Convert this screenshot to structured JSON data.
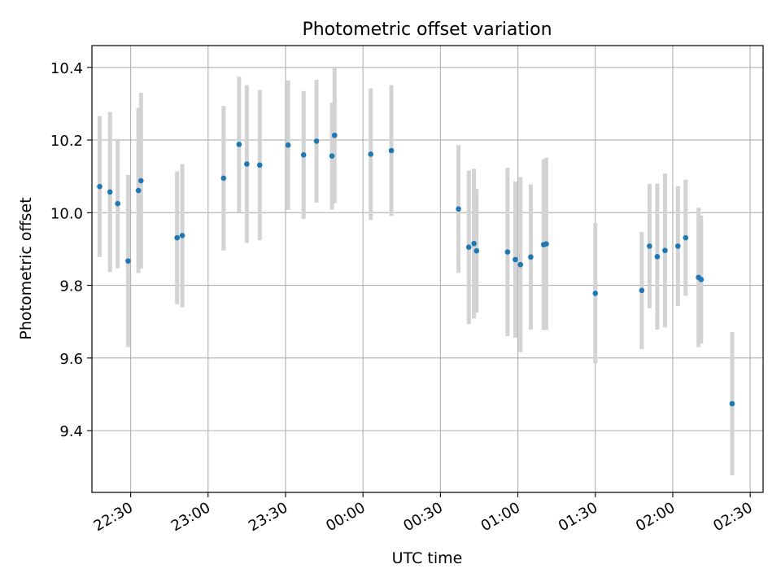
{
  "chart_data": {
    "type": "scatter",
    "title": "Photometric offset variation",
    "xlabel": "UTC time",
    "ylabel": "Photometric offset",
    "x_is_time": true,
    "xlim": [
      "22:15",
      "02:35"
    ],
    "ylim": [
      9.23,
      10.46
    ],
    "xticks": [
      "22:30",
      "23:00",
      "23:30",
      "00:00",
      "00:30",
      "01:00",
      "01:30",
      "02:00",
      "02:30"
    ],
    "yticks": [
      9.4,
      9.6,
      9.8,
      10.0,
      10.2,
      10.4
    ],
    "grid": true,
    "series": [
      {
        "marker_color": "#1f77b4",
        "errorbar_color": "#d3d3d3",
        "points": [
          {
            "x": "22:18",
            "y": 10.072,
            "yerr": 0.194
          },
          {
            "x": "22:22",
            "y": 10.057,
            "yerr": 0.22
          },
          {
            "x": "22:25",
            "y": 10.025,
            "yerr": 0.178
          },
          {
            "x": "22:29",
            "y": 9.867,
            "yerr": 0.237
          },
          {
            "x": "22:33",
            "y": 10.061,
            "yerr": 0.227
          },
          {
            "x": "22:34",
            "y": 10.088,
            "yerr": 0.242
          },
          {
            "x": "22:48",
            "y": 9.931,
            "yerr": 0.183
          },
          {
            "x": "22:50",
            "y": 9.937,
            "yerr": 0.197
          },
          {
            "x": "23:06",
            "y": 10.095,
            "yerr": 0.199
          },
          {
            "x": "23:12",
            "y": 10.188,
            "yerr": 0.186
          },
          {
            "x": "23:15",
            "y": 10.134,
            "yerr": 0.217
          },
          {
            "x": "23:20",
            "y": 10.131,
            "yerr": 0.207
          },
          {
            "x": "23:31",
            "y": 10.186,
            "yerr": 0.178
          },
          {
            "x": "23:37",
            "y": 10.159,
            "yerr": 0.176
          },
          {
            "x": "23:42",
            "y": 10.197,
            "yerr": 0.169
          },
          {
            "x": "23:48",
            "y": 10.156,
            "yerr": 0.147
          },
          {
            "x": "23:49",
            "y": 10.213,
            "yerr": 0.187
          },
          {
            "x": "00:03",
            "y": 10.161,
            "yerr": 0.181
          },
          {
            "x": "00:11",
            "y": 10.171,
            "yerr": 0.18
          },
          {
            "x": "00:37",
            "y": 10.01,
            "yerr": 0.176
          },
          {
            "x": "00:41",
            "y": 9.905,
            "yerr": 0.211
          },
          {
            "x": "00:43",
            "y": 9.915,
            "yerr": 0.206
          },
          {
            "x": "00:44",
            "y": 9.895,
            "yerr": 0.17
          },
          {
            "x": "00:56",
            "y": 9.892,
            "yerr": 0.232
          },
          {
            "x": "00:59",
            "y": 9.871,
            "yerr": 0.215
          },
          {
            "x": "01:01",
            "y": 9.857,
            "yerr": 0.241
          },
          {
            "x": "01:05",
            "y": 9.878,
            "yerr": 0.2
          },
          {
            "x": "01:10",
            "y": 9.912,
            "yerr": 0.235
          },
          {
            "x": "01:11",
            "y": 9.914,
            "yerr": 0.237
          },
          {
            "x": "01:30",
            "y": 9.778,
            "yerr": 0.193
          },
          {
            "x": "01:48",
            "y": 9.786,
            "yerr": 0.161
          },
          {
            "x": "01:51",
            "y": 9.908,
            "yerr": 0.171
          },
          {
            "x": "01:54",
            "y": 9.879,
            "yerr": 0.201
          },
          {
            "x": "01:57",
            "y": 9.896,
            "yerr": 0.212
          },
          {
            "x": "02:02",
            "y": 9.908,
            "yerr": 0.165
          },
          {
            "x": "02:05",
            "y": 9.931,
            "yerr": 0.16
          },
          {
            "x": "02:10",
            "y": 9.822,
            "yerr": 0.192
          },
          {
            "x": "02:11",
            "y": 9.816,
            "yerr": 0.176
          },
          {
            "x": "02:23",
            "y": 9.474,
            "yerr": 0.197
          }
        ]
      }
    ]
  }
}
